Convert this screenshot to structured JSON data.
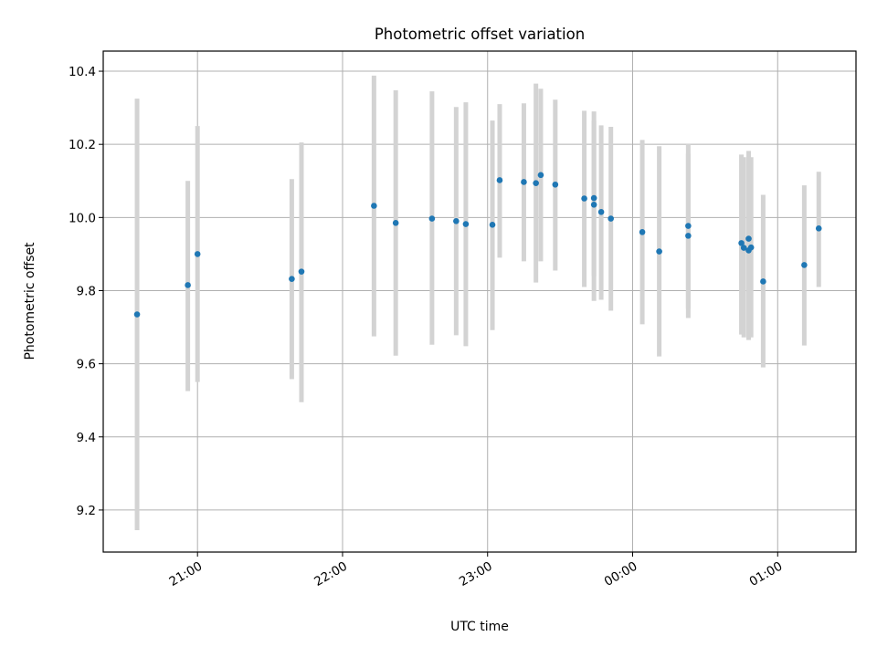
{
  "chart_data": {
    "type": "scatter",
    "title": "Photometric offset variation",
    "xlabel": "UTC time",
    "ylabel": "Photometric offset",
    "x_unit": "minutes after 20:00 UTC",
    "xlim": [
      20.35,
      25.54
    ],
    "ylim": [
      9.085,
      10.455
    ],
    "grid": true,
    "legend": "none",
    "x_ticks": [
      {
        "value": 21,
        "label": "21:00"
      },
      {
        "value": 22,
        "label": "22:00"
      },
      {
        "value": 23,
        "label": "23:00"
      },
      {
        "value": 24,
        "label": "00:00"
      },
      {
        "value": 25,
        "label": "01:00"
      }
    ],
    "y_ticks": [
      {
        "value": 9.2,
        "label": "9.2"
      },
      {
        "value": 9.4,
        "label": "9.4"
      },
      {
        "value": 9.6,
        "label": "9.6"
      },
      {
        "value": 9.8,
        "label": "9.8"
      },
      {
        "value": 10.0,
        "label": "10.0"
      },
      {
        "value": 10.2,
        "label": "10.2"
      },
      {
        "value": 10.4,
        "label": "10.4"
      }
    ],
    "colors": {
      "marker": "#1f77b4",
      "errorbar": "#d3d3d3",
      "grid": "#b0b0b0"
    },
    "series": [
      {
        "points": [
          {
            "x": "20:35",
            "y": 9.735,
            "ylow": 9.145,
            "yhigh": 10.325
          },
          {
            "x": "20:56",
            "y": 9.815,
            "ylow": 9.525,
            "yhigh": 10.1
          },
          {
            "x": "21:00",
            "y": 9.9,
            "ylow": 9.55,
            "yhigh": 10.25
          },
          {
            "x": "21:39",
            "y": 9.832,
            "ylow": 9.558,
            "yhigh": 10.105
          },
          {
            "x": "21:43",
            "y": 9.852,
            "ylow": 9.495,
            "yhigh": 10.205
          },
          {
            "x": "22:13",
            "y": 10.032,
            "ylow": 9.675,
            "yhigh": 10.388
          },
          {
            "x": "22:22",
            "y": 9.985,
            "ylow": 9.622,
            "yhigh": 10.348
          },
          {
            "x": "22:37",
            "y": 9.997,
            "ylow": 9.652,
            "yhigh": 10.345
          },
          {
            "x": "22:47",
            "y": 9.99,
            "ylow": 9.678,
            "yhigh": 10.302
          },
          {
            "x": "22:51",
            "y": 9.982,
            "ylow": 9.648,
            "yhigh": 10.315
          },
          {
            "x": "23:02",
            "y": 9.98,
            "ylow": 9.692,
            "yhigh": 10.265
          },
          {
            "x": "23:05",
            "y": 10.102,
            "ylow": 9.89,
            "yhigh": 10.31
          },
          {
            "x": "23:15",
            "y": 10.097,
            "ylow": 9.88,
            "yhigh": 10.312
          },
          {
            "x": "23:20",
            "y": 10.094,
            "ylow": 9.822,
            "yhigh": 10.366
          },
          {
            "x": "23:22",
            "y": 10.116,
            "ylow": 9.88,
            "yhigh": 10.352
          },
          {
            "x": "23:28",
            "y": 10.09,
            "ylow": 9.855,
            "yhigh": 10.322
          },
          {
            "x": "23:40",
            "y": 10.052,
            "ylow": 9.81,
            "yhigh": 10.292
          },
          {
            "x": "23:44",
            "y": 10.035,
            "ylow": 9.772,
            "yhigh": 10.29
          },
          {
            "x": "23:44",
            "y": 10.053,
            "ylow": 9.84,
            "yhigh": 10.265
          },
          {
            "x": "23:47",
            "y": 10.015,
            "ylow": 9.775,
            "yhigh": 10.252
          },
          {
            "x": "23:51",
            "y": 9.997,
            "ylow": 9.745,
            "yhigh": 10.248
          },
          {
            "x": "00:04",
            "y": 9.96,
            "ylow": 9.708,
            "yhigh": 10.212
          },
          {
            "x": "00:11",
            "y": 9.907,
            "ylow": 9.62,
            "yhigh": 10.195
          },
          {
            "x": "00:23",
            "y": 9.95,
            "ylow": 9.725,
            "yhigh": 10.175
          },
          {
            "x": "00:23",
            "y": 9.977,
            "ylow": 9.75,
            "yhigh": 10.202
          },
          {
            "x": "00:45",
            "y": 9.93,
            "ylow": 9.68,
            "yhigh": 10.172
          },
          {
            "x": "00:46",
            "y": 9.917,
            "ylow": 9.672,
            "yhigh": 10.165
          },
          {
            "x": "00:48",
            "y": 9.942,
            "ylow": 9.695,
            "yhigh": 10.182
          },
          {
            "x": "00:48",
            "y": 9.91,
            "ylow": 9.665,
            "yhigh": 10.162
          },
          {
            "x": "00:49",
            "y": 9.918,
            "ylow": 9.672,
            "yhigh": 10.165
          },
          {
            "x": "00:54",
            "y": 9.825,
            "ylow": 9.59,
            "yhigh": 10.062
          },
          {
            "x": "01:11",
            "y": 9.87,
            "ylow": 9.65,
            "yhigh": 10.088
          },
          {
            "x": "01:17",
            "y": 9.97,
            "ylow": 9.81,
            "yhigh": 10.125
          }
        ]
      }
    ]
  }
}
